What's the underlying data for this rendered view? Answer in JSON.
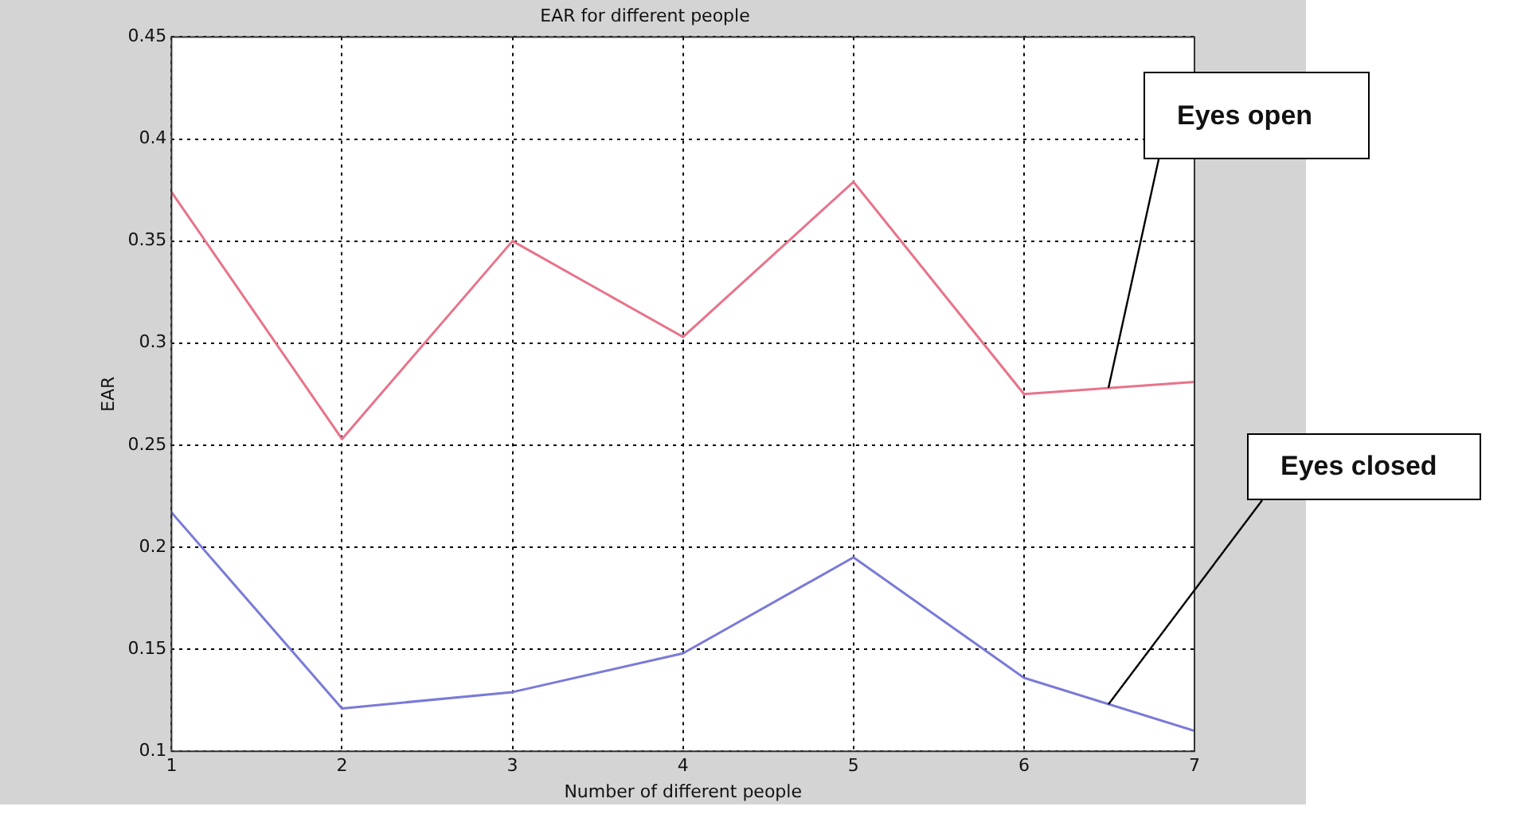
{
  "chart_data": {
    "type": "line",
    "title": "EAR for different people",
    "xlabel": "Number of different people",
    "ylabel": "EAR",
    "x": [
      1,
      2,
      3,
      4,
      5,
      6,
      7
    ],
    "series": [
      {
        "name": "Eyes open",
        "color": "#e8738a",
        "values": [
          0.374,
          0.253,
          0.35,
          0.303,
          0.379,
          0.275,
          0.281
        ]
      },
      {
        "name": "Eyes closed",
        "color": "#7a7ad8",
        "values": [
          0.217,
          0.121,
          0.129,
          0.148,
          0.195,
          0.136,
          0.11
        ]
      }
    ],
    "xlim": [
      1,
      7
    ],
    "xticks": [
      1,
      2,
      3,
      4,
      5,
      6,
      7
    ],
    "ylim": [
      0.1,
      0.45
    ],
    "yticks": [
      0.1,
      0.15,
      0.2,
      0.25,
      0.3,
      0.35,
      0.4,
      0.45
    ],
    "grid": true,
    "legend": false,
    "marker": "none",
    "line_style": "solid"
  }
}
